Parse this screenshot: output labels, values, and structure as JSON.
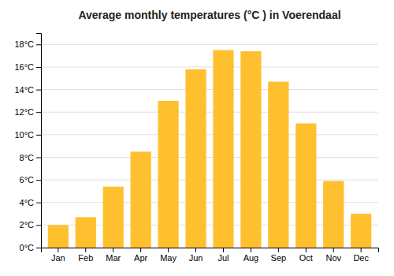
{
  "chart_data": {
    "type": "bar",
    "title": "Average monthly temperatures (°C ) in Voerendaal",
    "categories": [
      "Jan",
      "Feb",
      "Mar",
      "Apr",
      "May",
      "Jun",
      "Jul",
      "Aug",
      "Sep",
      "Oct",
      "Nov",
      "Dec"
    ],
    "values": [
      2.0,
      2.7,
      5.4,
      8.5,
      13.0,
      15.8,
      17.5,
      17.4,
      14.7,
      11.0,
      5.9,
      3.0
    ],
    "color": "#FFC030",
    "ylim": [
      0,
      19
    ],
    "yticks": [
      {
        "value": 0,
        "label": "0°C"
      },
      {
        "value": 2,
        "label": "2°C"
      },
      {
        "value": 4,
        "label": "4°C"
      },
      {
        "value": 6,
        "label": "6°C"
      },
      {
        "value": 8,
        "label": "8°C"
      },
      {
        "value": 10,
        "label": "10°C"
      },
      {
        "value": 12,
        "label": "12°C"
      },
      {
        "value": 14,
        "label": "14°C"
      },
      {
        "value": 16,
        "label": "16°C"
      },
      {
        "value": 18,
        "label": "18°C"
      }
    ],
    "grid": true
  }
}
